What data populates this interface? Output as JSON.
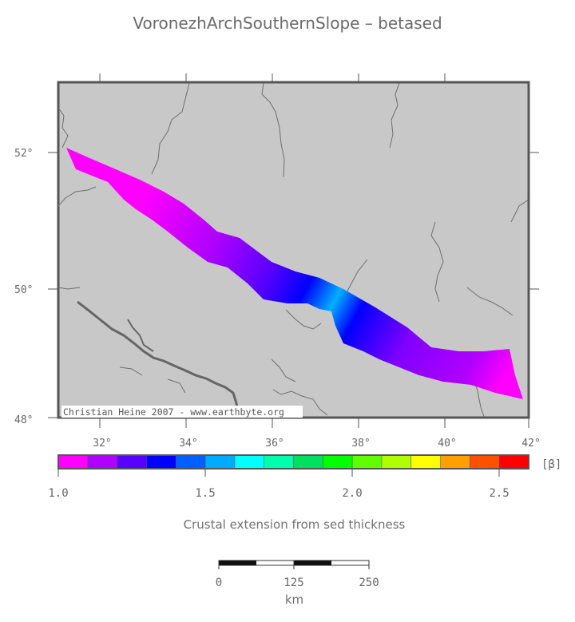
{
  "title": "VoronezhArchSouthernSlope – betased",
  "map": {
    "background_color": "#c8c8c8",
    "lat_labels": [
      "52°",
      "50°",
      "48°"
    ],
    "lon_labels": [
      "32°",
      "34°",
      "36°",
      "38°",
      "40°",
      "42°"
    ],
    "credit": "Christian Heine 2007 - www.earthbyte.org"
  },
  "colorbar": {
    "unit": "[β]",
    "colors": [
      "#ff00ff",
      "#b000ff",
      "#5a00ff",
      "#0000ff",
      "#0060ff",
      "#00aaff",
      "#00ffff",
      "#00ffaa",
      "#00e060",
      "#00ff00",
      "#60ff00",
      "#b0ff00",
      "#ffff00",
      "#ffa000",
      "#ff5000",
      "#ff0000"
    ],
    "ticks": [
      "1.0",
      "1.5",
      "2.0",
      "2.5"
    ],
    "label": "Crustal extension from sed thickness"
  },
  "scalebar": {
    "ticks": [
      "0",
      "125",
      "250"
    ],
    "unit": "km"
  }
}
